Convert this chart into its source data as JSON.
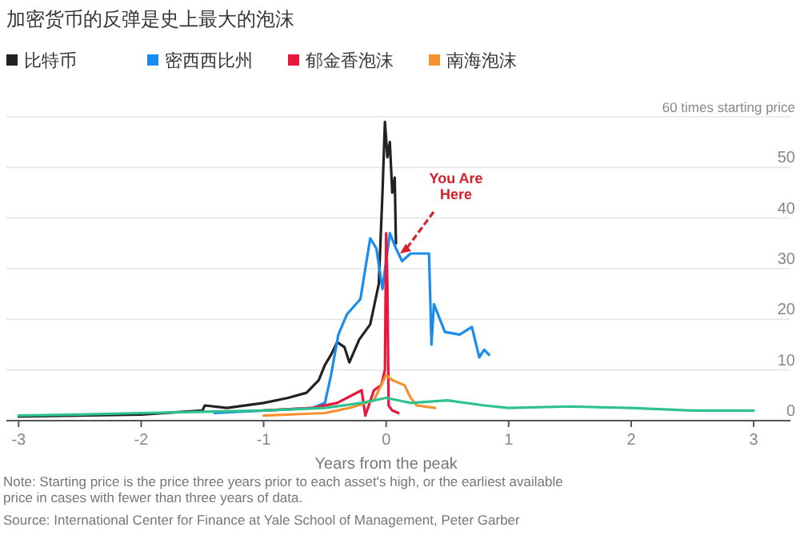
{
  "chart_data": {
    "type": "line",
    "title": "加密货币的反弹是史上最大的泡沫",
    "xlabel": "Years from the peak",
    "xlim": [
      -3.1,
      3.3
    ],
    "xticks": [
      -3,
      -2,
      -1,
      0,
      1,
      2,
      3
    ],
    "ylim": [
      0,
      60
    ],
    "yticks": [
      0,
      10,
      20,
      30,
      40,
      50,
      {
        "value": 60,
        "label": "60 times starting price"
      }
    ],
    "grid": "y",
    "legend": "top",
    "marker": "none",
    "line_style": "solid",
    "series": [
      {
        "name": "比特币",
        "color": "#222222",
        "x": [
          -3,
          -2.5,
          -2,
          -1.5,
          -1.48,
          -1.3,
          -1,
          -0.8,
          -0.65,
          -0.55,
          -0.5,
          -0.45,
          -0.4,
          -0.34,
          -0.3,
          -0.22,
          -0.13,
          -0.06,
          -0.03,
          -0.01,
          0.01,
          0.03,
          0.05,
          0.07,
          0.08
        ],
        "values": [
          0.8,
          1,
          1.2,
          2,
          3,
          2.5,
          3.5,
          4.5,
          5.5,
          8,
          11,
          13,
          15.5,
          14.5,
          11.5,
          16,
          19,
          27,
          45,
          59,
          52,
          55,
          45,
          48,
          35
        ]
      },
      {
        "name": "密西西比州",
        "color": "#1a8cf0",
        "x": [
          -1.4,
          -1,
          -0.6,
          -0.5,
          -0.45,
          -0.39,
          -0.32,
          -0.21,
          -0.13,
          -0.08,
          -0.03,
          0.03,
          0.08,
          0.13,
          0.2,
          0.35,
          0.37,
          0.39,
          0.48,
          0.6,
          0.7,
          0.76,
          0.8,
          0.84
        ],
        "values": [
          1.5,
          2,
          2.5,
          3.5,
          9,
          17,
          21,
          24,
          36,
          34,
          26,
          37,
          34,
          31.5,
          33,
          33,
          15,
          23,
          17.5,
          17,
          18.5,
          12.5,
          14,
          13
        ]
      },
      {
        "name": "郁金香泡沫",
        "color": "#e8173c",
        "x": [
          -1,
          -0.6,
          -0.4,
          -0.2,
          -0.17,
          -0.1,
          -0.04,
          -0.01,
          0,
          0.01,
          0.02,
          0.05,
          0.1
        ],
        "values": [
          2,
          2.5,
          3.5,
          6,
          1,
          6,
          7,
          10,
          37,
          27,
          3,
          2,
          1.5
        ]
      },
      {
        "name": "南海泡沫",
        "color": "#f5922f",
        "x": [
          -1,
          -0.5,
          -0.3,
          -0.1,
          0,
          0.05,
          0.15,
          0.2,
          0.25,
          0.4
        ],
        "values": [
          1,
          1.5,
          2.5,
          4,
          9,
          8,
          7,
          4.5,
          3,
          2.5
        ]
      },
      {
        "color": "#2ec28e",
        "x": [
          -3,
          -2.5,
          -2,
          -1,
          -0.5,
          -0.2,
          0,
          0.2,
          0.5,
          0.8,
          1,
          1.5,
          2,
          2.5,
          3
        ],
        "values": [
          1,
          1.2,
          1.5,
          2,
          2.5,
          3.5,
          4.5,
          3.5,
          4,
          3,
          2.5,
          2.8,
          2.5,
          2,
          2
        ]
      }
    ],
    "annotations": [
      {
        "text": "You Are Here",
        "x": 0.1,
        "y": 33
      },
      "Note: Starting price is the price three years prior to each asset's high, or the earliest available price in cases with fewer than three years of data.",
      "Source: International Center for Finance at Yale School of Management, Peter Garber"
    ]
  }
}
